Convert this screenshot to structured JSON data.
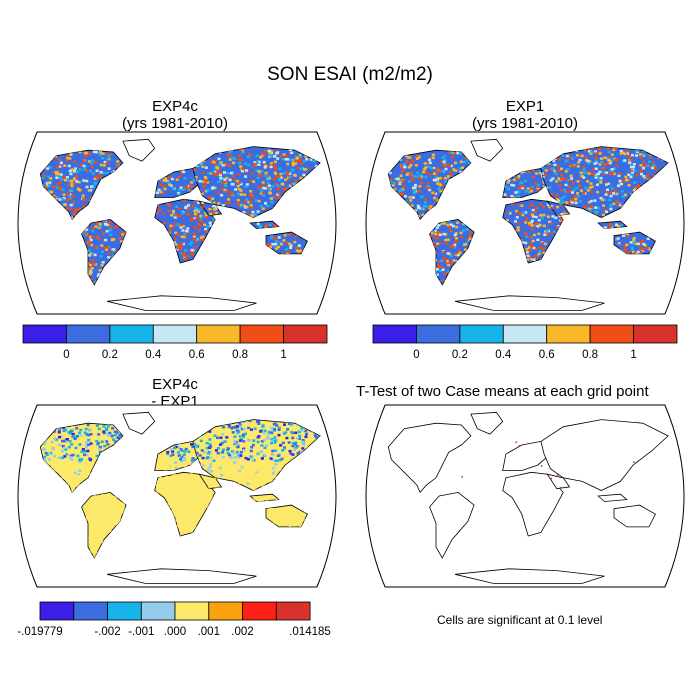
{
  "title": "SON ESAI (m2/m2)",
  "panels": [
    {
      "title_line1": "EXP4c",
      "title_line2": "(yrs 1981-2010)"
    },
    {
      "title_line1": "EXP1",
      "title_line2": "(yrs 1981-2010)"
    },
    {
      "title_line1": "EXP4c",
      "title_line2": "- EXP1"
    },
    {
      "title_line1": "T-Test of two Case means at each grid point",
      "title_line2": ""
    }
  ],
  "colorbar_main": {
    "colors": [
      "#3a1fe8",
      "#3c6de0",
      "#17b4ec",
      "#c6e7f3",
      "#f9b72a",
      "#f04d17",
      "#d9312c"
    ],
    "labels": [
      "0",
      "0.2",
      "0.4",
      "0.6",
      "0.8",
      "1"
    ]
  },
  "colorbar_diff": {
    "colors": [
      "#3a1fe8",
      "#3c6de0",
      "#17b4ec",
      "#94cdeb",
      "#fce96a",
      "#f9a20e",
      "#fb2214",
      "#d9312c"
    ],
    "labels": [
      "-.019779",
      "-.002",
      "-.001",
      ".000",
      ".001",
      ".002",
      ".014185"
    ]
  },
  "footnote": "Cells are significant at 0.1 level",
  "colors": {
    "ocean": "#ffffff",
    "coastline": "#000000",
    "diff_base": "#fce96a",
    "significant": "#e23a2a"
  }
}
